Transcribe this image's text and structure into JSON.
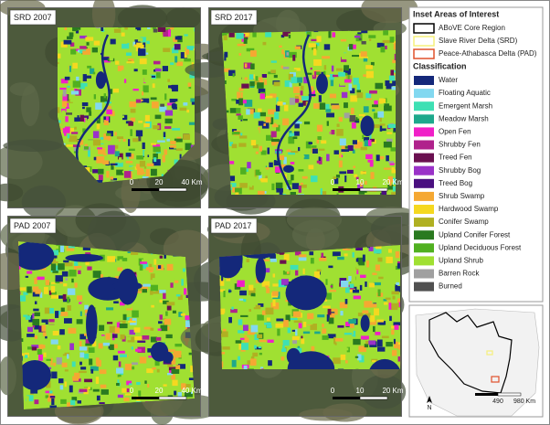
{
  "panels": [
    {
      "title": "SRD 2007",
      "scale": [
        "0",
        "20",
        "40 Km"
      ]
    },
    {
      "title": "SRD 2017",
      "scale": [
        "0",
        "10",
        "20 Km"
      ]
    },
    {
      "title": "PAD 2007",
      "scale": [
        "0",
        "20",
        "40 Km"
      ]
    },
    {
      "title": "PAD 2017",
      "scale": [
        "0",
        "10",
        "20 Km"
      ]
    }
  ],
  "legend": {
    "inset_title": "Inset Areas of Interest",
    "inset_items": [
      {
        "label": "ABoVE Core Region",
        "color": "#000000"
      },
      {
        "label": "Slave River Delta (SRD)",
        "color": "#f5f07a"
      },
      {
        "label": "Peace-Athabasca Delta (PAD)",
        "color": "#e0502a"
      }
    ],
    "classification_title": "Classification",
    "classes": [
      {
        "label": "Water",
        "color": "#14287a"
      },
      {
        "label": "Floating Aquatic",
        "color": "#82d8f0"
      },
      {
        "label": "Emergent Marsh",
        "color": "#3ee0b4"
      },
      {
        "label": "Meadow Marsh",
        "color": "#1ea88c"
      },
      {
        "label": "Open Fen",
        "color": "#f020c8"
      },
      {
        "label": "Shrubby Fen",
        "color": "#b0228c"
      },
      {
        "label": "Treed Fen",
        "color": "#6a1050"
      },
      {
        "label": "Shrubby Bog",
        "color": "#9a32c8"
      },
      {
        "label": "Treed Bog",
        "color": "#4a1080"
      },
      {
        "label": "Shrub Swamp",
        "color": "#f5a832"
      },
      {
        "label": "Hardwood Swamp",
        "color": "#f5d820"
      },
      {
        "label": "Conifer Swamp",
        "color": "#b0b022"
      },
      {
        "label": "Upland Conifer Forest",
        "color": "#2a7a20"
      },
      {
        "label": "Upland Deciduous Forest",
        "color": "#50b020"
      },
      {
        "label": "Upland Shrub",
        "color": "#a0e032"
      },
      {
        "label": "Barren Rock",
        "color": "#a0a0a0"
      },
      {
        "label": "Burned",
        "color": "#505050"
      }
    ]
  },
  "inset_map": {
    "north": "N",
    "scale": [
      "490",
      "980 Km"
    ]
  }
}
